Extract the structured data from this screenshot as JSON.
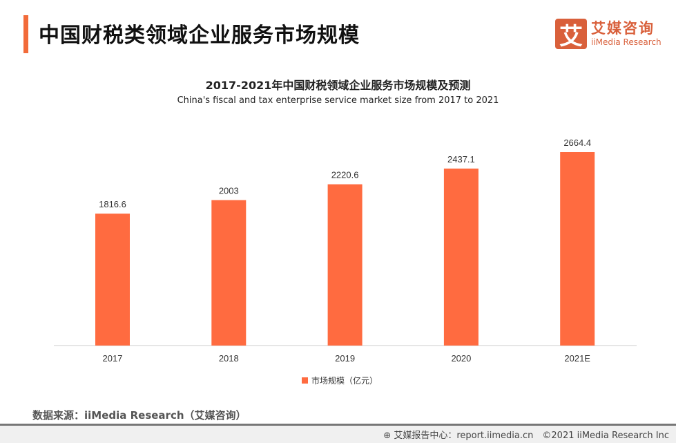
{
  "header": {
    "title": "中国财税类领域企业服务市场规模",
    "logo_cn": "艾媒咨询",
    "logo_en": "iiMedia Research",
    "logo_mark": "艾"
  },
  "chart_data": {
    "type": "bar",
    "title": "2017-2021年中国财税领域企业服务市场规模及预测",
    "subtitle": "China's fiscal and tax enterprise service market size from 2017 to 2021",
    "categories": [
      "2017",
      "2018",
      "2019",
      "2020",
      "2021E"
    ],
    "series": [
      {
        "name": "市场规模（亿元）",
        "values": [
          1816.6,
          2003,
          2220.6,
          2437.1,
          2664.4
        ],
        "color": "#ff6b40"
      }
    ],
    "data_labels": [
      "1816.6",
      "2003",
      "2220.6",
      "2437.1",
      "2664.4"
    ],
    "grid": false,
    "legend": "bottom"
  },
  "footer": {
    "source": "数据来源：iiMedia Research（艾媒咨询）",
    "copyright": "艾媒报告中心：report.iimedia.cn　©2021  iiMedia Research  Inc",
    "globe_icon": "globe-icon"
  }
}
